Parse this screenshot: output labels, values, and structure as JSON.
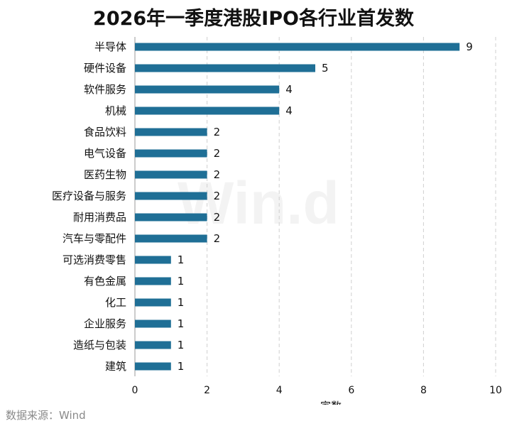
{
  "title": "2026年一季度港股IPO各行业首发数",
  "source": "数据来源：Wind",
  "watermark": "Win.d",
  "chart_data": {
    "type": "bar",
    "orientation": "horizontal",
    "title": "2026年一季度港股IPO各行业首发数",
    "xlabel": "家数",
    "ylabel": "",
    "xlim": [
      0,
      10
    ],
    "xticks": [
      0,
      2,
      4,
      6,
      8,
      10
    ],
    "grid": "vertical dashed",
    "bar_color": "#1f6f96",
    "categories": [
      "半导体",
      "硬件设备",
      "软件服务",
      "机械",
      "食品饮料",
      "电气设备",
      "医药生物",
      "医疗设备与服务",
      "耐用消费品",
      "汽车与零配件",
      "可选消费零售",
      "有色金属",
      "化工",
      "企业服务",
      "造纸与包装",
      "建筑"
    ],
    "values": [
      9,
      5,
      4,
      4,
      2,
      2,
      2,
      2,
      2,
      2,
      1,
      1,
      1,
      1,
      1,
      1
    ]
  }
}
